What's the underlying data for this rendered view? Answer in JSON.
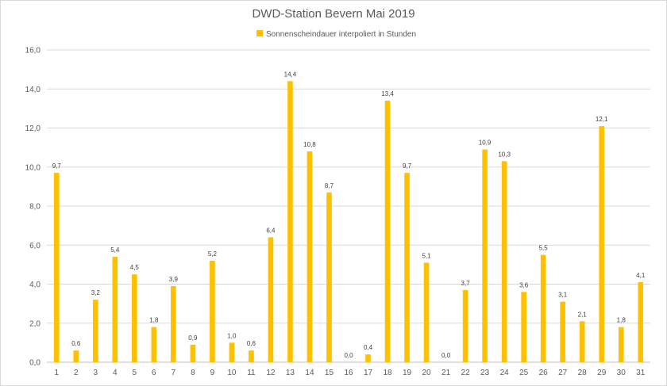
{
  "chart_data": {
    "type": "bar",
    "title": "DWD-Station Bevern Mai 2019",
    "legend": {
      "label": "Sonnenscheindauer interpoliert in Stunden",
      "placement": "top-center"
    },
    "xlabel": "",
    "ylabel": "",
    "ylim": [
      0,
      16
    ],
    "ytick_step": 2,
    "ytick_labels": [
      "0,0",
      "2,0",
      "4,0",
      "6,0",
      "8,0",
      "10,0",
      "12,0",
      "14,0",
      "16,0"
    ],
    "grid": true,
    "bar_color": "#ffc000",
    "grid_color": "#d9d9d9",
    "categories": [
      "1",
      "2",
      "3",
      "4",
      "5",
      "6",
      "7",
      "8",
      "9",
      "10",
      "11",
      "12",
      "13",
      "14",
      "15",
      "16",
      "17",
      "18",
      "19",
      "20",
      "21",
      "22",
      "23",
      "24",
      "25",
      "26",
      "27",
      "28",
      "29",
      "30",
      "31"
    ],
    "values": [
      9.7,
      0.6,
      3.2,
      5.4,
      4.5,
      1.8,
      3.9,
      0.9,
      5.2,
      1.0,
      0.6,
      6.4,
      14.4,
      10.8,
      8.7,
      0.0,
      0.4,
      13.4,
      9.7,
      5.1,
      0.0,
      3.7,
      10.9,
      10.3,
      3.6,
      5.5,
      3.1,
      2.1,
      12.1,
      1.8,
      4.1
    ],
    "data_labels": [
      "9,7",
      "0,6",
      "3,2",
      "5,4",
      "4,5",
      "1,8",
      "3,9",
      "0,9",
      "5,2",
      "1,0",
      "0,6",
      "6,4",
      "14,4",
      "10,8",
      "8,7",
      "0,0",
      "0,4",
      "13,4",
      "9,7",
      "5,1",
      "0,0",
      "3,7",
      "10,9",
      "10,3",
      "3,6",
      "5,5",
      "3,1",
      "2,1",
      "12,1",
      "1,8",
      "4,1"
    ]
  }
}
